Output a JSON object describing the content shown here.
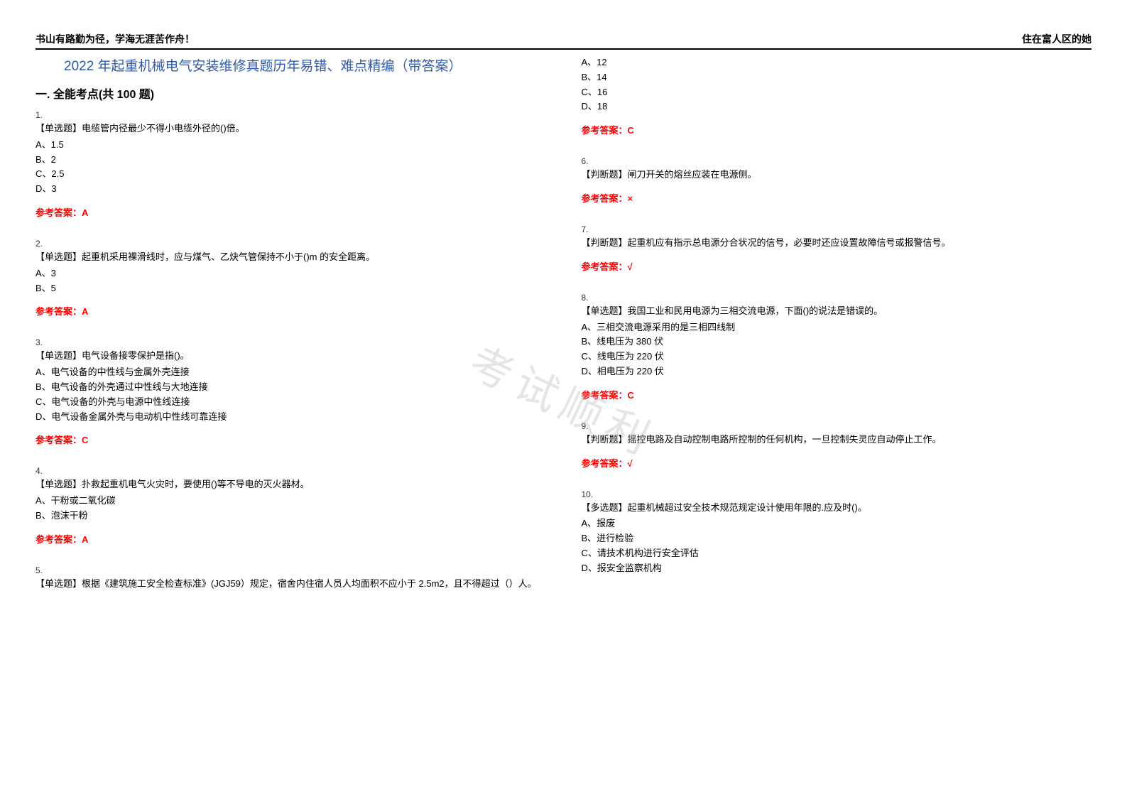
{
  "header": {
    "left": "书山有路勤为径，学海无涯苦作舟！",
    "right": "住在富人区的她"
  },
  "title": "2022 年起重机械电气安装维修真题历年易错、难点精编（带答案）",
  "section_title": "一. 全能考点(共 100 题)",
  "watermark": "考试顺利",
  "answer_label": "参考答案：",
  "colors": {
    "title_color": "#2e5aac",
    "answer_color": "#ff0000",
    "text_color": "#000000",
    "watermark_color": "rgba(180,180,180,0.35)",
    "border_color": "#000000",
    "background": "#ffffff"
  },
  "questions_left": [
    {
      "num": "1.",
      "text": "【单选题】电缆管内径最少不得小电缆外径的()倍。",
      "options": [
        "A、1.5",
        "B、2",
        "C、2.5",
        "D、3"
      ],
      "answer": "A"
    },
    {
      "num": "2.",
      "text": "【单选题】起重机采用裸滑线时，应与煤气、乙炔气管保持不小于()m 的安全距离。",
      "options": [
        "A、3",
        "B、5"
      ],
      "answer": "A"
    },
    {
      "num": "3.",
      "text": "【单选题】电气设备接零保护是指()。",
      "options": [
        "A、电气设备的中性线与金属外壳连接",
        "B、电气设备的外壳通过中性线与大地连接",
        "C、电气设备的外壳与电源中性线连接",
        "D、电气设备金属外壳与电动机中性线可靠连接"
      ],
      "answer": "C"
    },
    {
      "num": "4.",
      "text": "【单选题】扑救起重机电气火灾时，要使用()等不导电的灭火器材。",
      "options": [
        "A、干粉或二氧化碳",
        "B、泡沫干粉"
      ],
      "answer": "A"
    },
    {
      "num": "5.",
      "text": "【单选题】根据《建筑施工安全检查标准》(JGJ59）规定，宿舍内住宿人员人均面积不应小于 2.5m2，且不得超过（）人。",
      "options": [],
      "answer": null
    }
  ],
  "questions_right": [
    {
      "num": null,
      "text": null,
      "options": [
        "A、12",
        "B、14",
        "C、16",
        "D、18"
      ],
      "answer": "C"
    },
    {
      "num": "6.",
      "text": "【判断题】闸刀开关的熔丝应装在电源侧。",
      "options": [],
      "answer": "×"
    },
    {
      "num": "7.",
      "text": "【判断题】起重机应有指示总电源分合状况的信号，必要时还应设置故障信号或报警信号。",
      "options": [],
      "answer": "√"
    },
    {
      "num": "8.",
      "text": "【单选题】我国工业和民用电源为三相交流电源，下面()的说法是错误的。",
      "options": [
        "A、三相交流电源采用的是三相四线制",
        "B、线电压为 380 伏",
        "C、线电压为 220 伏",
        "D、相电压为 220 伏"
      ],
      "answer": "C"
    },
    {
      "num": "9.",
      "text": "【判断题】摇控电路及自动控制电路所控制的任何机构，一旦控制失灵应自动停止工作。",
      "options": [],
      "answer": "√"
    },
    {
      "num": "10.",
      "text": "【多选题】起重机械超过安全技术规范规定设计使用年限的.应及时()。",
      "options": [
        "A、报废",
        "B、进行检验",
        "C、请技术机构进行安全评估",
        "D、报安全监察机构"
      ],
      "answer": null
    }
  ]
}
